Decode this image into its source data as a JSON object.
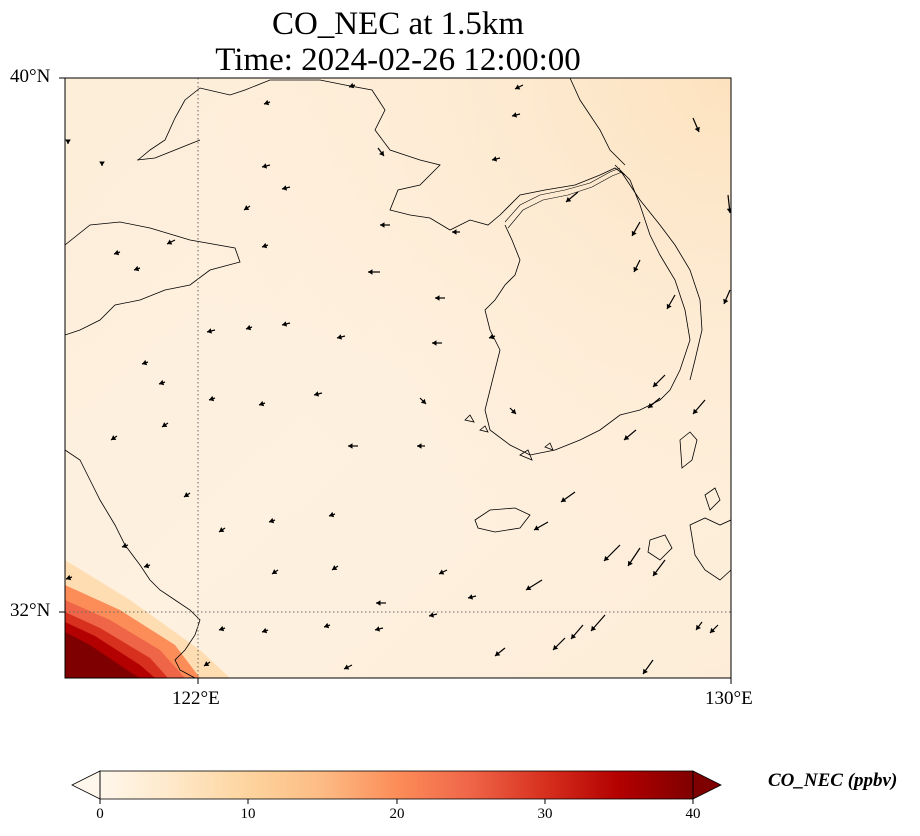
{
  "title_line1": "CO_NEC at 1.5km",
  "title_line2": "Time: 2024-02-26 12:00:00",
  "map": {
    "lon_range": [
      120,
      130
    ],
    "lat_range": [
      31,
      40
    ],
    "lat_ticks": [
      {
        "value": 40,
        "label": "40°N"
      },
      {
        "value": 32,
        "label": "32°N"
      }
    ],
    "lon_ticks": [
      {
        "value": 122,
        "label": "122°E"
      },
      {
        "value": 130,
        "label": "130°E"
      }
    ],
    "gridlines": {
      "lon": [
        122
      ],
      "lat": [
        32
      ],
      "style": "dotted"
    }
  },
  "colorbar": {
    "label": "CO_NEC (ppbv)",
    "min": 0,
    "max": 40,
    "ticks": [
      0,
      10,
      20,
      30,
      40
    ],
    "colormap": "OrRd",
    "extend": "both",
    "stops": [
      "#fff7ec",
      "#fee8c8",
      "#fdd49e",
      "#fdbb84",
      "#fc8d59",
      "#ef6548",
      "#d7301f",
      "#b30000",
      "#7f0000"
    ]
  },
  "wind_vectors": {
    "color": "#000000",
    "pattern": "light westward flow over the sea, stronger north-eastward to south-westward arrows near Korea and the south-east"
  }
}
